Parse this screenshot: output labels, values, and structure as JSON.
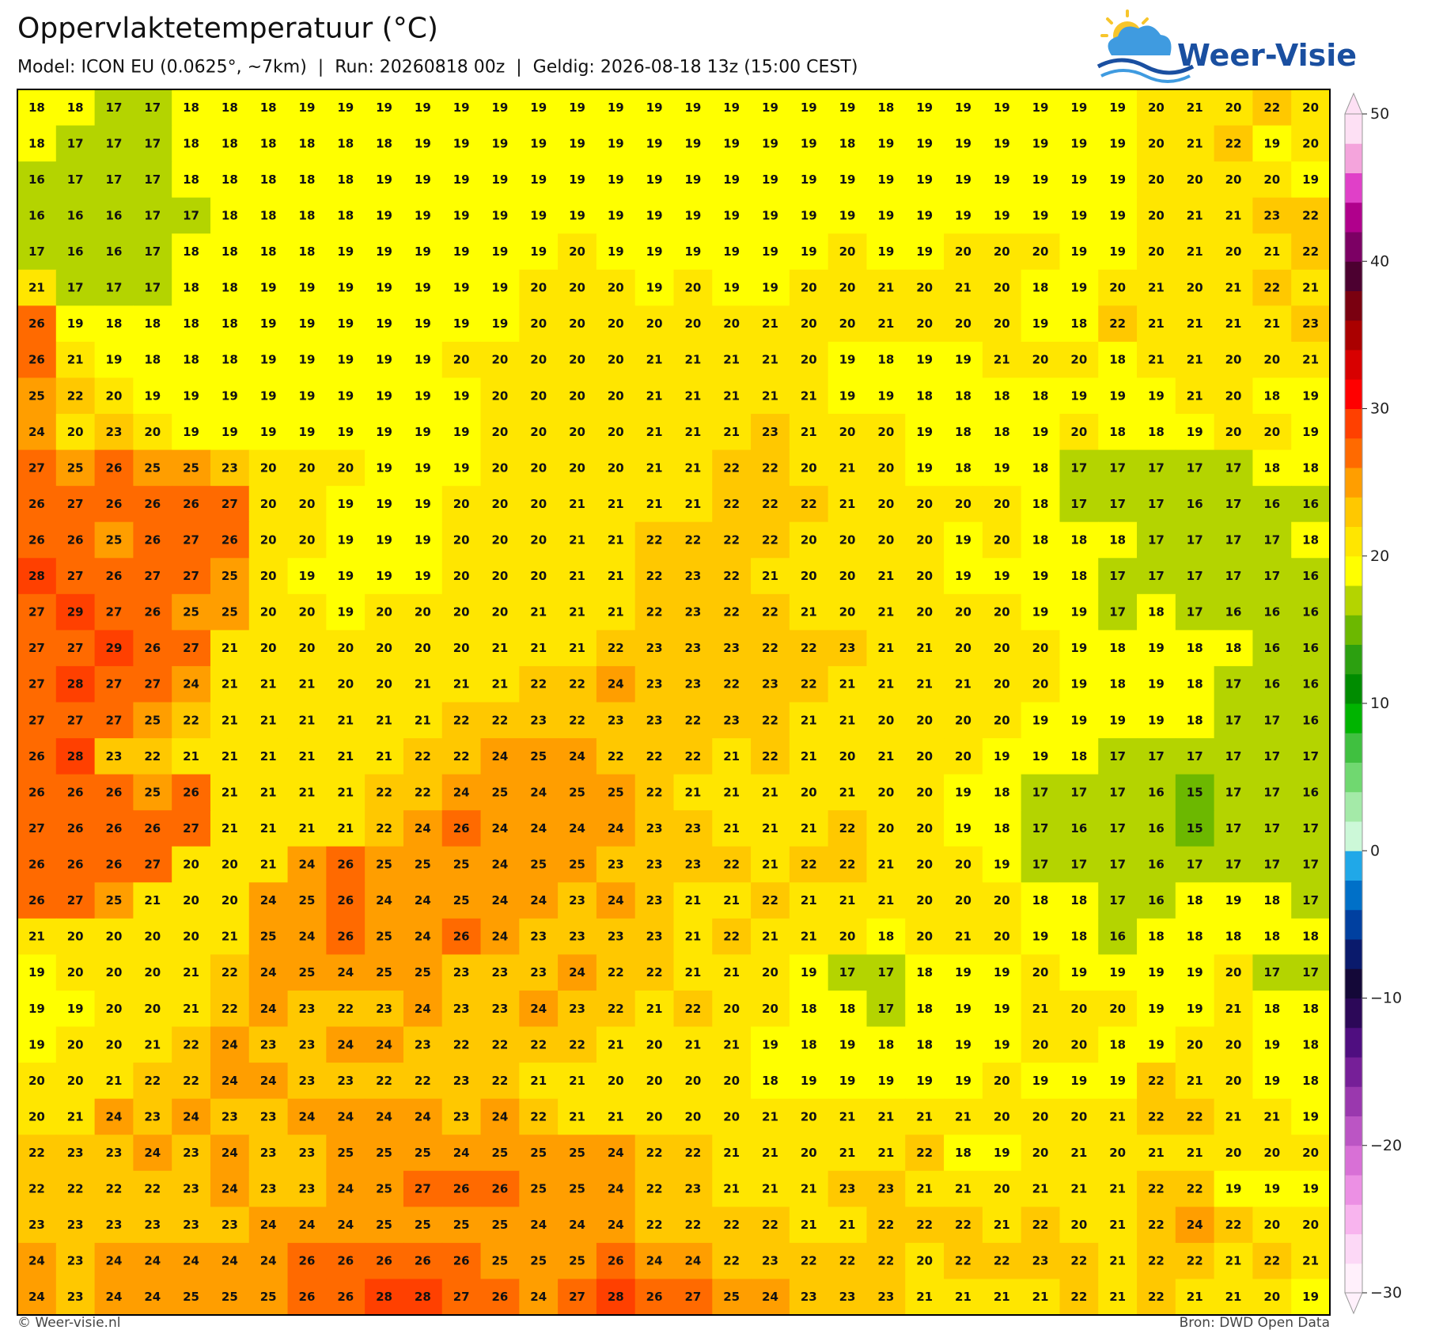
{
  "header": {
    "title": "Oppervlaktetemperatuur (°C)",
    "subtitle": "Model: ICON EU (0.0625°, ~7km)  |  Run: 20260818 00z  |  Geldig: 2026-08-18 13z (15:00 CEST)"
  },
  "logo": "Weer-Visie",
  "grid": {
    "rows": [
      [
        18,
        18,
        17,
        17,
        18,
        18,
        18,
        19,
        19,
        19,
        19,
        19,
        19,
        19,
        19,
        19,
        19,
        19,
        19,
        19,
        19,
        19,
        18,
        19,
        19,
        19,
        19,
        19,
        19,
        20,
        21,
        20,
        22,
        20
      ],
      [
        18,
        17,
        17,
        17,
        18,
        18,
        18,
        18,
        18,
        18,
        19,
        19,
        19,
        19,
        19,
        19,
        19,
        19,
        19,
        19,
        19,
        18,
        19,
        19,
        19,
        19,
        19,
        19,
        19,
        20,
        21,
        22,
        19,
        20
      ],
      [
        16,
        17,
        17,
        17,
        18,
        18,
        18,
        18,
        18,
        19,
        19,
        19,
        19,
        19,
        19,
        19,
        19,
        19,
        19,
        19,
        19,
        19,
        19,
        19,
        19,
        19,
        19,
        19,
        19,
        20,
        20,
        20,
        20,
        19
      ],
      [
        16,
        16,
        16,
        17,
        17,
        18,
        18,
        18,
        18,
        19,
        19,
        19,
        19,
        19,
        19,
        19,
        19,
        19,
        19,
        19,
        19,
        19,
        19,
        19,
        19,
        19,
        19,
        19,
        19,
        20,
        21,
        21,
        23,
        22
      ],
      [
        17,
        16,
        16,
        17,
        18,
        18,
        18,
        18,
        19,
        19,
        19,
        19,
        19,
        19,
        20,
        19,
        19,
        19,
        19,
        19,
        19,
        20,
        19,
        19,
        20,
        20,
        20,
        19,
        19,
        20,
        21,
        20,
        21,
        22
      ],
      [
        21,
        17,
        17,
        17,
        18,
        18,
        19,
        19,
        19,
        19,
        19,
        19,
        19,
        20,
        20,
        20,
        19,
        20,
        19,
        19,
        20,
        20,
        21,
        20,
        21,
        20,
        18,
        19,
        20,
        21,
        20,
        21,
        22,
        21
      ],
      [
        26,
        19,
        18,
        18,
        18,
        18,
        19,
        19,
        19,
        19,
        19,
        19,
        19,
        20,
        20,
        20,
        20,
        20,
        20,
        21,
        20,
        20,
        21,
        20,
        20,
        20,
        19,
        18,
        22,
        21,
        21,
        21,
        21,
        23
      ],
      [
        26,
        21,
        19,
        18,
        18,
        18,
        19,
        19,
        19,
        19,
        19,
        20,
        20,
        20,
        20,
        20,
        21,
        21,
        21,
        21,
        20,
        19,
        18,
        19,
        19,
        21,
        20,
        20,
        18,
        21,
        21,
        20,
        20,
        21
      ],
      [
        25,
        22,
        20,
        19,
        19,
        19,
        19,
        19,
        19,
        19,
        19,
        19,
        20,
        20,
        20,
        20,
        21,
        21,
        21,
        21,
        21,
        19,
        19,
        18,
        18,
        18,
        18,
        19,
        19,
        19,
        21,
        20,
        18,
        19
      ],
      [
        24,
        20,
        23,
        20,
        19,
        19,
        19,
        19,
        19,
        19,
        19,
        19,
        20,
        20,
        20,
        20,
        21,
        21,
        21,
        23,
        21,
        20,
        20,
        19,
        18,
        18,
        19,
        20,
        18,
        18,
        19,
        20,
        20,
        19
      ],
      [
        27,
        25,
        26,
        25,
        25,
        23,
        20,
        20,
        20,
        19,
        19,
        19,
        20,
        20,
        20,
        20,
        21,
        21,
        22,
        22,
        20,
        21,
        20,
        19,
        18,
        19,
        18,
        17,
        17,
        17,
        17,
        17,
        18,
        18
      ],
      [
        26,
        27,
        26,
        26,
        26,
        27,
        20,
        20,
        19,
        19,
        19,
        20,
        20,
        20,
        21,
        21,
        21,
        21,
        22,
        22,
        22,
        21,
        20,
        20,
        20,
        20,
        18,
        17,
        17,
        17,
        16,
        17,
        16,
        16
      ],
      [
        26,
        26,
        25,
        26,
        27,
        26,
        20,
        20,
        19,
        19,
        19,
        20,
        20,
        20,
        21,
        21,
        22,
        22,
        22,
        22,
        20,
        20,
        20,
        20,
        19,
        20,
        18,
        18,
        18,
        17,
        17,
        17,
        17,
        18
      ],
      [
        28,
        27,
        26,
        27,
        27,
        25,
        20,
        19,
        19,
        19,
        19,
        20,
        20,
        20,
        21,
        21,
        22,
        23,
        22,
        21,
        20,
        20,
        21,
        20,
        19,
        19,
        19,
        18,
        17,
        17,
        17,
        17,
        17,
        16
      ],
      [
        27,
        29,
        27,
        26,
        25,
        25,
        20,
        20,
        19,
        20,
        20,
        20,
        20,
        21,
        21,
        21,
        22,
        23,
        22,
        22,
        21,
        20,
        21,
        20,
        20,
        20,
        19,
        19,
        17,
        18,
        17,
        16,
        16,
        16
      ],
      [
        27,
        27,
        29,
        26,
        27,
        21,
        20,
        20,
        20,
        20,
        20,
        20,
        21,
        21,
        21,
        22,
        23,
        23,
        23,
        22,
        22,
        23,
        21,
        21,
        20,
        20,
        20,
        19,
        18,
        19,
        18,
        18,
        16,
        16
      ],
      [
        27,
        28,
        27,
        27,
        24,
        21,
        21,
        21,
        20,
        20,
        21,
        21,
        21,
        22,
        22,
        24,
        23,
        23,
        22,
        23,
        22,
        21,
        21,
        21,
        21,
        20,
        20,
        19,
        18,
        19,
        18,
        17,
        16,
        16
      ],
      [
        27,
        27,
        27,
        25,
        22,
        21,
        21,
        21,
        21,
        21,
        21,
        22,
        22,
        23,
        22,
        23,
        23,
        22,
        23,
        22,
        21,
        21,
        20,
        20,
        20,
        20,
        19,
        19,
        19,
        19,
        18,
        17,
        17,
        16
      ],
      [
        26,
        28,
        23,
        22,
        21,
        21,
        21,
        21,
        21,
        21,
        22,
        22,
        24,
        25,
        24,
        22,
        22,
        22,
        21,
        22,
        21,
        20,
        21,
        20,
        20,
        19,
        19,
        18,
        17,
        17,
        17,
        17,
        17,
        17
      ],
      [
        26,
        26,
        26,
        25,
        26,
        21,
        21,
        21,
        21,
        22,
        22,
        24,
        25,
        24,
        25,
        25,
        22,
        21,
        21,
        21,
        20,
        21,
        20,
        20,
        19,
        18,
        17,
        17,
        17,
        16,
        15,
        17,
        17,
        16
      ],
      [
        27,
        26,
        26,
        26,
        27,
        21,
        21,
        21,
        21,
        22,
        24,
        26,
        24,
        24,
        24,
        24,
        23,
        23,
        21,
        21,
        21,
        22,
        20,
        20,
        19,
        18,
        17,
        16,
        17,
        16,
        15,
        17,
        17,
        17
      ],
      [
        26,
        26,
        26,
        27,
        20,
        20,
        21,
        24,
        26,
        25,
        25,
        25,
        24,
        25,
        25,
        23,
        23,
        23,
        22,
        21,
        22,
        22,
        21,
        20,
        20,
        19,
        17,
        17,
        17,
        16,
        17,
        17,
        17,
        17
      ],
      [
        26,
        27,
        25,
        21,
        20,
        20,
        24,
        25,
        26,
        24,
        24,
        25,
        24,
        24,
        23,
        24,
        23,
        21,
        21,
        22,
        21,
        21,
        21,
        20,
        20,
        20,
        18,
        18,
        17,
        16,
        18,
        19,
        18,
        17
      ],
      [
        21,
        20,
        20,
        20,
        20,
        21,
        25,
        24,
        26,
        25,
        24,
        26,
        24,
        23,
        23,
        23,
        23,
        21,
        22,
        21,
        21,
        20,
        18,
        20,
        21,
        20,
        19,
        18,
        16,
        18,
        18,
        18,
        18,
        18
      ],
      [
        19,
        20,
        20,
        20,
        21,
        22,
        24,
        25,
        24,
        25,
        25,
        23,
        23,
        23,
        24,
        22,
        22,
        21,
        21,
        20,
        19,
        17,
        17,
        18,
        19,
        19,
        20,
        19,
        19,
        19,
        19,
        20,
        17,
        17
      ],
      [
        19,
        19,
        20,
        20,
        21,
        22,
        24,
        23,
        22,
        23,
        24,
        23,
        23,
        24,
        23,
        22,
        21,
        22,
        20,
        20,
        18,
        18,
        17,
        18,
        19,
        19,
        21,
        20,
        20,
        19,
        19,
        21,
        18,
        18
      ],
      [
        19,
        20,
        20,
        21,
        22,
        24,
        23,
        23,
        24,
        24,
        23,
        22,
        22,
        22,
        22,
        21,
        20,
        21,
        21,
        19,
        18,
        19,
        18,
        18,
        19,
        19,
        20,
        20,
        18,
        19,
        20,
        20,
        19,
        18
      ],
      [
        20,
        20,
        21,
        22,
        22,
        24,
        24,
        23,
        23,
        22,
        22,
        23,
        22,
        21,
        21,
        20,
        20,
        20,
        20,
        18,
        19,
        19,
        19,
        19,
        19,
        20,
        19,
        19,
        19,
        22,
        21,
        20,
        19,
        18
      ],
      [
        20,
        21,
        24,
        23,
        24,
        23,
        23,
        24,
        24,
        24,
        24,
        23,
        24,
        22,
        21,
        21,
        20,
        20,
        20,
        21,
        20,
        21,
        21,
        21,
        21,
        20,
        20,
        20,
        21,
        22,
        22,
        21,
        21,
        19
      ],
      [
        22,
        23,
        23,
        24,
        23,
        24,
        23,
        23,
        25,
        25,
        25,
        24,
        25,
        25,
        25,
        24,
        22,
        22,
        21,
        21,
        20,
        21,
        21,
        22,
        18,
        19,
        20,
        21,
        20,
        21,
        21,
        20,
        20,
        20
      ],
      [
        22,
        22,
        22,
        22,
        23,
        24,
        23,
        23,
        24,
        25,
        27,
        26,
        26,
        25,
        25,
        24,
        22,
        23,
        21,
        21,
        21,
        23,
        23,
        21,
        21,
        20,
        21,
        21,
        21,
        22,
        22,
        19,
        19,
        19
      ],
      [
        23,
        23,
        23,
        23,
        23,
        23,
        24,
        24,
        24,
        25,
        25,
        25,
        25,
        24,
        24,
        24,
        22,
        22,
        22,
        22,
        21,
        21,
        22,
        22,
        22,
        21,
        22,
        20,
        21,
        22,
        24,
        22,
        20,
        20
      ],
      [
        24,
        23,
        24,
        24,
        24,
        24,
        24,
        26,
        26,
        26,
        26,
        26,
        25,
        25,
        25,
        26,
        24,
        24,
        22,
        23,
        22,
        22,
        22,
        20,
        22,
        22,
        23,
        22,
        21,
        22,
        22,
        21,
        22,
        21
      ],
      [
        24,
        23,
        24,
        24,
        25,
        25,
        25,
        26,
        26,
        28,
        28,
        27,
        26,
        24,
        27,
        28,
        26,
        27,
        25,
        24,
        23,
        23,
        23,
        21,
        21,
        21,
        21,
        22,
        21,
        22,
        21,
        21,
        20,
        19
      ]
    ]
  },
  "colorbar": {
    "lim": [
      -30,
      50
    ],
    "ticks": [
      {
        "value": -30,
        "label": "−30"
      },
      {
        "value": -20,
        "label": "−20"
      },
      {
        "value": -10,
        "label": "−10"
      },
      0,
      10,
      20,
      30,
      40,
      50
    ],
    "colors": [
      "#fff0fb",
      "#fcd8f6",
      "#f8b4ee",
      "#ec90e4",
      "#d870d6",
      "#bb55c4",
      "#9a38ae",
      "#761f98",
      "#4f0e80",
      "#2c0858",
      "#140838",
      "#0a1a6c",
      "#0040a0",
      "#0070c8",
      "#20a8e8",
      "#ccf8d8",
      "#a4eaa8",
      "#70d870",
      "#40c040",
      "#00b400",
      "#008c00",
      "#2ca010",
      "#6cb800",
      "#b4d400",
      "#ffff00",
      "#ffe600",
      "#ffc800",
      "#ff9e00",
      "#ff6a00",
      "#ff4000",
      "#ff0000",
      "#d80000",
      "#aa0000",
      "#7a0010",
      "#4c0030",
      "#7c0064",
      "#b0008c",
      "#e040c8",
      "#f4a4dc",
      "#fde0f4"
    ]
  },
  "footer": {
    "left": "© Weer-visie.nl",
    "right": "Bron: DWD Open Data"
  }
}
